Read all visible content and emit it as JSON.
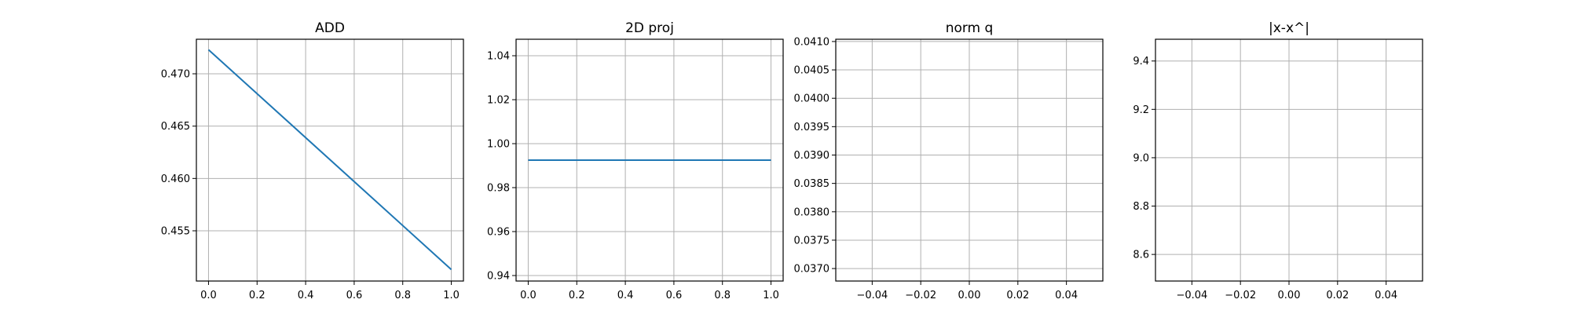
{
  "chart_data": [
    {
      "type": "line",
      "title": "ADD",
      "xlim": [
        -0.05,
        1.05
      ],
      "ylim": [
        0.4502,
        0.4733
      ],
      "xticks": [
        0.0,
        0.2,
        0.4,
        0.6,
        0.8,
        1.0
      ],
      "xtick_labels": [
        "0.0",
        "0.2",
        "0.4",
        "0.6",
        "0.8",
        "1.0"
      ],
      "yticks": [
        0.455,
        0.46,
        0.465,
        0.47
      ],
      "ytick_labels": [
        "0.455",
        "0.460",
        "0.465",
        "0.470"
      ],
      "grid": true,
      "series": [
        {
          "color": "#1f77b4",
          "x": [
            0.0,
            1.0
          ],
          "y": [
            0.4723,
            0.4513
          ]
        }
      ]
    },
    {
      "type": "line",
      "title": "2D proj",
      "xlim": [
        -0.05,
        1.05
      ],
      "ylim": [
        0.9375,
        1.0475
      ],
      "xticks": [
        0.0,
        0.2,
        0.4,
        0.6,
        0.8,
        1.0
      ],
      "xtick_labels": [
        "0.0",
        "0.2",
        "0.4",
        "0.6",
        "0.8",
        "1.0"
      ],
      "yticks": [
        0.94,
        0.96,
        0.98,
        1.0,
        1.02,
        1.04
      ],
      "ytick_labels": [
        "0.94",
        "0.96",
        "0.98",
        "1.00",
        "1.02",
        "1.04"
      ],
      "grid": true,
      "series": [
        {
          "color": "#1f77b4",
          "x": [
            0.0,
            1.0
          ],
          "y": [
            0.9925,
            0.9925
          ]
        }
      ]
    },
    {
      "type": "line",
      "title": "norm q",
      "xlim": [
        -0.055,
        0.055
      ],
      "ylim": [
        0.03678,
        0.04104
      ],
      "xticks": [
        -0.04,
        -0.02,
        0.0,
        0.02,
        0.04
      ],
      "xtick_labels": [
        "−0.04",
        "−0.02",
        "0.00",
        "0.02",
        "0.04"
      ],
      "yticks": [
        0.037,
        0.0375,
        0.038,
        0.0385,
        0.039,
        0.0395,
        0.04,
        0.0405,
        0.041
      ],
      "ytick_labels": [
        "0.0370",
        "0.0375",
        "0.0380",
        "0.0385",
        "0.0390",
        "0.0395",
        "0.0400",
        "0.0405",
        "0.0410"
      ],
      "grid": true,
      "series": []
    },
    {
      "type": "line",
      "title": "|x-x^|",
      "xlim": [
        -0.055,
        0.055
      ],
      "ylim": [
        8.49,
        9.49
      ],
      "xticks": [
        -0.04,
        -0.02,
        0.0,
        0.02,
        0.04
      ],
      "xtick_labels": [
        "−0.04",
        "−0.02",
        "0.00",
        "0.02",
        "0.04"
      ],
      "yticks": [
        8.6,
        8.8,
        9.0,
        9.2,
        9.4
      ],
      "ytick_labels": [
        "8.6",
        "8.8",
        "9.0",
        "9.2",
        "9.4"
      ],
      "grid": true,
      "series": []
    }
  ]
}
